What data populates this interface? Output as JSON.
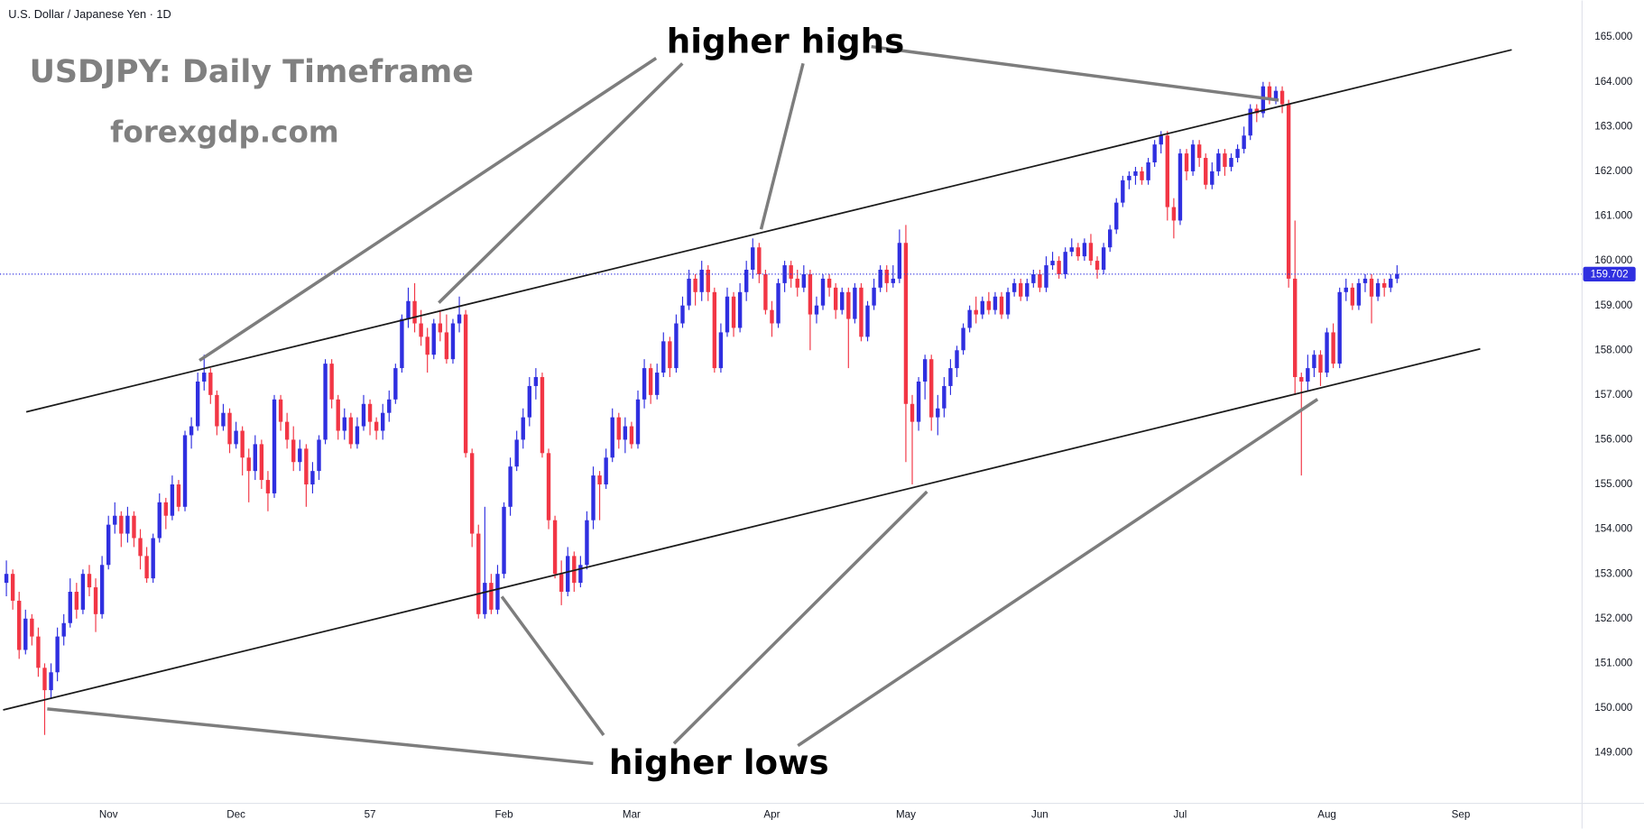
{
  "header": "U.S. Dollar / Japanese Yen · 1D",
  "chart_data": {
    "type": "candlestick",
    "title": "USDJPY: Daily Timeframe",
    "subtitle": "forexgdp.com",
    "annotations": [
      "higher highs",
      "higher lows"
    ],
    "up_color": "#2f2fe0",
    "down_color": "#f23645",
    "xlim": [
      -1,
      247
    ],
    "xticks": [
      {
        "value": 16,
        "label": "Nov"
      },
      {
        "value": 36,
        "label": "Dec"
      },
      57,
      {
        "value": 78,
        "label": "Feb"
      },
      {
        "value": 98,
        "label": "Mar"
      },
      {
        "value": 120,
        "label": "Apr"
      },
      {
        "value": 141,
        "label": "May"
      },
      {
        "value": 162,
        "label": "Jun"
      },
      {
        "value": 184,
        "label": "Jul"
      },
      {
        "value": 207,
        "label": "Aug"
      },
      {
        "value": 228,
        "label": "Sep"
      }
    ],
    "ylim": [
      147.87,
      165.82
    ],
    "yticks": [
      {
        "value": 149,
        "label": "149.000"
      },
      {
        "value": 150,
        "label": "150.000"
      },
      {
        "value": 151,
        "label": "151.000"
      },
      {
        "value": 152,
        "label": "152.000"
      },
      {
        "value": 153,
        "label": "153.000"
      },
      {
        "value": 154,
        "label": "154.000"
      },
      {
        "value": 155,
        "label": "155.000"
      },
      {
        "value": 156,
        "label": "156.000"
      },
      {
        "value": 157,
        "label": "157.000"
      },
      {
        "value": 158,
        "label": "158.000"
      },
      {
        "value": 159,
        "label": "159.000"
      },
      {
        "value": 160,
        "label": "160.000"
      },
      {
        "value": 161,
        "label": "161.000"
      },
      {
        "value": 162,
        "label": "162.000"
      },
      {
        "value": 163,
        "label": "163.000"
      },
      {
        "value": 164,
        "label": "164.000"
      },
      {
        "value": 165,
        "label": "165.000"
      }
    ],
    "ohlc": [
      [
        152.8,
        153.3,
        152.5,
        153.0
      ],
      [
        153.0,
        153.1,
        152.2,
        152.4
      ],
      [
        152.4,
        152.6,
        151.1,
        151.3
      ],
      [
        151.3,
        152.2,
        151.2,
        152.0
      ],
      [
        152.0,
        152.1,
        151.4,
        151.6
      ],
      [
        151.6,
        151.8,
        150.7,
        150.9
      ],
      [
        150.9,
        151.0,
        149.4,
        150.4
      ],
      [
        150.4,
        151.0,
        150.2,
        150.8
      ],
      [
        150.8,
        151.8,
        150.6,
        151.6
      ],
      [
        151.6,
        152.1,
        151.4,
        151.9
      ],
      [
        151.9,
        152.9,
        151.8,
        152.6
      ],
      [
        152.6,
        152.8,
        152.0,
        152.2
      ],
      [
        152.2,
        153.1,
        152.1,
        153.0
      ],
      [
        153.0,
        153.2,
        152.5,
        152.7
      ],
      [
        152.7,
        152.9,
        151.7,
        152.1
      ],
      [
        152.1,
        153.4,
        152.0,
        153.2
      ],
      [
        153.2,
        154.3,
        153.1,
        154.1
      ],
      [
        154.1,
        154.6,
        153.9,
        154.3
      ],
      [
        154.3,
        154.4,
        153.6,
        153.9
      ],
      [
        153.9,
        154.5,
        153.7,
        154.3
      ],
      [
        154.3,
        154.4,
        153.6,
        153.8
      ],
      [
        153.8,
        154.0,
        153.1,
        153.4
      ],
      [
        153.4,
        153.6,
        152.8,
        152.9
      ],
      [
        152.9,
        153.9,
        152.8,
        153.8
      ],
      [
        153.8,
        154.8,
        153.7,
        154.6
      ],
      [
        154.6,
        154.7,
        154.0,
        154.3
      ],
      [
        154.3,
        155.2,
        154.2,
        155.0
      ],
      [
        155.0,
        155.1,
        154.4,
        154.5
      ],
      [
        154.5,
        156.2,
        154.4,
        156.1
      ],
      [
        156.1,
        156.5,
        155.8,
        156.3
      ],
      [
        156.3,
        157.5,
        156.2,
        157.3
      ],
      [
        157.3,
        157.9,
        157.1,
        157.5
      ],
      [
        157.5,
        157.6,
        156.8,
        157.0
      ],
      [
        157.0,
        157.1,
        156.1,
        156.3
      ],
      [
        156.3,
        156.8,
        156.2,
        156.6
      ],
      [
        156.6,
        156.7,
        155.7,
        155.9
      ],
      [
        155.9,
        156.4,
        155.8,
        156.2
      ],
      [
        156.2,
        156.3,
        155.2,
        155.6
      ],
      [
        155.6,
        155.8,
        154.6,
        155.3
      ],
      [
        155.3,
        156.1,
        155.1,
        155.9
      ],
      [
        155.9,
        156.0,
        154.9,
        155.1
      ],
      [
        155.1,
        155.3,
        154.4,
        154.8
      ],
      [
        154.8,
        157.0,
        154.7,
        156.9
      ],
      [
        156.9,
        157.0,
        156.2,
        156.4
      ],
      [
        156.4,
        156.6,
        155.8,
        156.0
      ],
      [
        156.0,
        156.3,
        155.3,
        155.5
      ],
      [
        155.5,
        156.0,
        155.3,
        155.8
      ],
      [
        155.8,
        155.9,
        154.5,
        155.0
      ],
      [
        155.0,
        155.5,
        154.8,
        155.3
      ],
      [
        155.3,
        156.1,
        155.1,
        156.0
      ],
      [
        156.0,
        157.8,
        155.9,
        157.7
      ],
      [
        157.7,
        157.8,
        156.7,
        156.9
      ],
      [
        156.9,
        157.0,
        156.0,
        156.2
      ],
      [
        156.2,
        156.7,
        156.0,
        156.5
      ],
      [
        156.5,
        156.6,
        155.8,
        155.9
      ],
      [
        155.9,
        156.5,
        155.8,
        156.3
      ],
      [
        156.3,
        157.0,
        156.2,
        156.8
      ],
      [
        156.8,
        156.9,
        156.1,
        156.4
      ],
      [
        156.4,
        156.5,
        156.0,
        156.2
      ],
      [
        156.2,
        156.8,
        156.0,
        156.6
      ],
      [
        156.6,
        157.1,
        156.4,
        156.9
      ],
      [
        156.9,
        157.7,
        156.8,
        157.6
      ],
      [
        157.6,
        158.8,
        157.5,
        158.7
      ],
      [
        158.7,
        159.4,
        158.5,
        159.1
      ],
      [
        159.1,
        159.5,
        158.4,
        158.6
      ],
      [
        158.6,
        158.9,
        158.1,
        158.3
      ],
      [
        158.3,
        158.5,
        157.5,
        157.9
      ],
      [
        157.9,
        158.7,
        157.8,
        158.6
      ],
      [
        158.6,
        158.9,
        158.2,
        158.4
      ],
      [
        158.4,
        158.8,
        157.7,
        157.8
      ],
      [
        157.8,
        158.7,
        157.7,
        158.6
      ],
      [
        158.6,
        159.2,
        158.4,
        158.8
      ],
      [
        158.8,
        158.9,
        155.6,
        155.7
      ],
      [
        155.7,
        155.8,
        153.6,
        153.9
      ],
      [
        153.9,
        154.1,
        152.0,
        152.1
      ],
      [
        152.1,
        154.5,
        152.0,
        152.8
      ],
      [
        152.8,
        153.0,
        152.1,
        152.2
      ],
      [
        152.2,
        153.2,
        152.1,
        153.0
      ],
      [
        153.0,
        154.6,
        152.9,
        154.5
      ],
      [
        154.5,
        155.6,
        154.3,
        155.4
      ],
      [
        155.4,
        156.2,
        155.3,
        156.0
      ],
      [
        156.0,
        156.7,
        155.8,
        156.5
      ],
      [
        156.5,
        157.4,
        156.3,
        157.2
      ],
      [
        157.2,
        157.6,
        156.9,
        157.4
      ],
      [
        157.4,
        157.5,
        155.6,
        155.7
      ],
      [
        155.7,
        155.8,
        154.0,
        154.2
      ],
      [
        154.2,
        154.3,
        152.9,
        153.0
      ],
      [
        153.0,
        153.3,
        152.3,
        152.6
      ],
      [
        152.6,
        153.6,
        152.5,
        153.4
      ],
      [
        153.4,
        153.5,
        152.6,
        152.8
      ],
      [
        152.8,
        153.4,
        152.7,
        153.2
      ],
      [
        153.2,
        154.4,
        153.1,
        154.2
      ],
      [
        154.2,
        155.4,
        154.0,
        155.2
      ],
      [
        155.2,
        155.3,
        154.2,
        155.0
      ],
      [
        155.0,
        155.8,
        154.9,
        155.6
      ],
      [
        155.6,
        156.7,
        155.5,
        156.5
      ],
      [
        156.5,
        156.6,
        155.8,
        156.0
      ],
      [
        156.0,
        156.5,
        155.7,
        156.3
      ],
      [
        156.3,
        156.4,
        155.8,
        155.9
      ],
      [
        155.9,
        157.1,
        155.8,
        156.9
      ],
      [
        156.9,
        157.8,
        156.7,
        157.6
      ],
      [
        157.6,
        157.7,
        156.8,
        157.0
      ],
      [
        157.0,
        157.7,
        156.9,
        157.5
      ],
      [
        157.5,
        158.4,
        157.4,
        158.2
      ],
      [
        158.2,
        158.3,
        157.4,
        157.6
      ],
      [
        157.6,
        158.8,
        157.5,
        158.6
      ],
      [
        158.6,
        159.2,
        158.5,
        159.0
      ],
      [
        159.0,
        159.8,
        158.9,
        159.6
      ],
      [
        159.6,
        159.7,
        159.0,
        159.3
      ],
      [
        159.3,
        160.0,
        159.1,
        159.8
      ],
      [
        159.8,
        159.9,
        159.1,
        159.3
      ],
      [
        159.3,
        159.4,
        157.5,
        157.6
      ],
      [
        157.6,
        158.6,
        157.5,
        158.4
      ],
      [
        158.4,
        159.4,
        158.3,
        159.2
      ],
      [
        159.2,
        159.3,
        158.3,
        158.5
      ],
      [
        158.5,
        159.5,
        158.4,
        159.3
      ],
      [
        159.3,
        160.0,
        159.1,
        159.8
      ],
      [
        159.8,
        160.5,
        159.6,
        160.3
      ],
      [
        160.3,
        160.4,
        159.5,
        159.7
      ],
      [
        159.7,
        159.8,
        158.8,
        158.9
      ],
      [
        158.9,
        159.1,
        158.3,
        158.6
      ],
      [
        158.6,
        159.6,
        158.5,
        159.5
      ],
      [
        159.5,
        160.0,
        159.3,
        159.9
      ],
      [
        159.9,
        160.0,
        159.4,
        159.6
      ],
      [
        159.6,
        159.8,
        159.2,
        159.4
      ],
      [
        159.4,
        159.9,
        159.3,
        159.7
      ],
      [
        159.7,
        159.8,
        158.0,
        158.8
      ],
      [
        158.8,
        159.2,
        158.6,
        159.0
      ],
      [
        159.0,
        159.7,
        158.9,
        159.6
      ],
      [
        159.6,
        159.7,
        159.2,
        159.4
      ],
      [
        159.4,
        159.5,
        158.7,
        158.9
      ],
      [
        158.9,
        159.4,
        158.8,
        159.3
      ],
      [
        159.3,
        159.4,
        157.6,
        158.7
      ],
      [
        158.7,
        159.5,
        158.6,
        159.4
      ],
      [
        159.4,
        159.5,
        158.2,
        158.3
      ],
      [
        158.3,
        159.1,
        158.2,
        159.0
      ],
      [
        159.0,
        159.6,
        158.9,
        159.4
      ],
      [
        159.4,
        159.9,
        159.3,
        159.8
      ],
      [
        159.8,
        159.9,
        159.3,
        159.5
      ],
      [
        159.5,
        159.9,
        159.4,
        159.6
      ],
      [
        159.6,
        160.7,
        159.5,
        160.4
      ],
      [
        160.4,
        160.8,
        155.5,
        156.8
      ],
      [
        156.8,
        157.0,
        155.0,
        156.4
      ],
      [
        156.4,
        157.4,
        156.2,
        157.3
      ],
      [
        157.3,
        157.9,
        156.9,
        157.8
      ],
      [
        157.8,
        157.9,
        156.2,
        156.5
      ],
      [
        156.5,
        157.0,
        156.1,
        156.7
      ],
      [
        156.7,
        157.4,
        156.5,
        157.2
      ],
      [
        157.2,
        157.8,
        157.0,
        157.6
      ],
      [
        157.6,
        158.1,
        157.4,
        158.0
      ],
      [
        158.0,
        158.6,
        157.9,
        158.5
      ],
      [
        158.5,
        159.0,
        158.4,
        158.9
      ],
      [
        158.9,
        159.2,
        158.6,
        158.8
      ],
      [
        158.8,
        159.2,
        158.7,
        159.1
      ],
      [
        159.1,
        159.3,
        158.8,
        158.9
      ],
      [
        158.9,
        159.3,
        158.8,
        159.2
      ],
      [
        159.2,
        159.3,
        158.7,
        158.8
      ],
      [
        158.8,
        159.4,
        158.7,
        159.3
      ],
      [
        159.3,
        159.6,
        159.2,
        159.5
      ],
      [
        159.5,
        159.6,
        159.1,
        159.2
      ],
      [
        159.2,
        159.6,
        159.1,
        159.5
      ],
      [
        159.5,
        159.8,
        159.4,
        159.7
      ],
      [
        159.7,
        159.8,
        159.3,
        159.4
      ],
      [
        159.4,
        160.1,
        159.3,
        159.9
      ],
      [
        159.9,
        160.2,
        159.8,
        160.0
      ],
      [
        160.0,
        160.1,
        159.6,
        159.7
      ],
      [
        159.7,
        160.3,
        159.6,
        160.2
      ],
      [
        160.2,
        160.5,
        160.1,
        160.3
      ],
      [
        160.3,
        160.4,
        160.0,
        160.1
      ],
      [
        160.1,
        160.5,
        160.0,
        160.4
      ],
      [
        160.4,
        160.6,
        159.9,
        160.0
      ],
      [
        160.0,
        160.1,
        159.6,
        159.8
      ],
      [
        159.8,
        160.4,
        159.7,
        160.3
      ],
      [
        160.3,
        160.8,
        160.2,
        160.7
      ],
      [
        160.7,
        161.4,
        160.6,
        161.3
      ],
      [
        161.3,
        161.9,
        161.2,
        161.8
      ],
      [
        161.8,
        162.0,
        161.6,
        161.9
      ],
      [
        161.9,
        162.1,
        161.7,
        162.0
      ],
      [
        162.0,
        162.1,
        161.7,
        161.8
      ],
      [
        161.8,
        162.3,
        161.7,
        162.2
      ],
      [
        162.2,
        162.7,
        162.1,
        162.6
      ],
      [
        162.6,
        162.9,
        162.4,
        162.8
      ],
      [
        162.8,
        162.9,
        160.9,
        161.2
      ],
      [
        161.2,
        161.4,
        160.5,
        160.9
      ],
      [
        160.9,
        162.5,
        160.8,
        162.4
      ],
      [
        162.4,
        162.5,
        161.8,
        162.0
      ],
      [
        162.0,
        162.7,
        161.9,
        162.6
      ],
      [
        162.6,
        162.7,
        162.1,
        162.3
      ],
      [
        162.3,
        162.4,
        161.6,
        161.7
      ],
      [
        161.7,
        162.2,
        161.6,
        162.0
      ],
      [
        162.0,
        162.5,
        161.9,
        162.4
      ],
      [
        162.4,
        162.5,
        161.9,
        162.1
      ],
      [
        162.1,
        162.4,
        162.0,
        162.3
      ],
      [
        162.3,
        162.6,
        162.2,
        162.5
      ],
      [
        162.5,
        163.0,
        162.4,
        162.8
      ],
      [
        162.8,
        163.5,
        162.7,
        163.4
      ],
      [
        163.4,
        163.5,
        163.1,
        163.3
      ],
      [
        163.3,
        164.0,
        163.2,
        163.9
      ],
      [
        163.9,
        164.0,
        163.5,
        163.6
      ],
      [
        163.6,
        163.9,
        163.5,
        163.8
      ],
      [
        163.8,
        163.9,
        163.3,
        163.5
      ],
      [
        163.5,
        163.6,
        159.4,
        159.6
      ],
      [
        159.6,
        160.9,
        157.0,
        157.4
      ],
      [
        157.4,
        157.5,
        155.2,
        157.3
      ],
      [
        157.3,
        157.9,
        157.1,
        157.6
      ],
      [
        157.6,
        158.0,
        157.4,
        157.9
      ],
      [
        157.9,
        158.0,
        157.2,
        157.5
      ],
      [
        157.5,
        158.5,
        157.4,
        158.4
      ],
      [
        158.4,
        158.6,
        157.6,
        157.7
      ],
      [
        157.7,
        159.4,
        157.6,
        159.3
      ],
      [
        159.3,
        159.6,
        159.1,
        159.4
      ],
      [
        159.4,
        159.5,
        158.9,
        159.0
      ],
      [
        159.0,
        159.6,
        158.9,
        159.5
      ],
      [
        159.5,
        159.7,
        159.3,
        159.6
      ],
      [
        159.6,
        159.7,
        158.6,
        159.2
      ],
      [
        159.2,
        159.6,
        159.1,
        159.5
      ],
      [
        159.5,
        159.6,
        159.2,
        159.4
      ],
      [
        159.4,
        159.7,
        159.3,
        159.6
      ],
      [
        159.6,
        159.9,
        159.5,
        159.702
      ]
    ]
  }
}
